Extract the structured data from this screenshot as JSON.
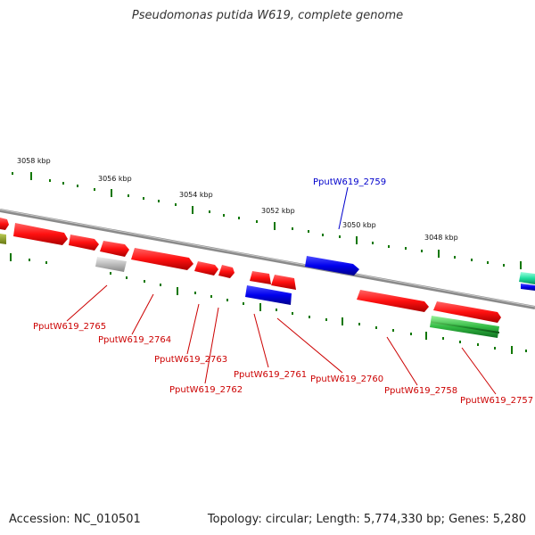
{
  "title": "Pseudomonas putida W619, complete genome",
  "footer": {
    "accession": "Accession: NC_010501",
    "summary": "Topology: circular; Length: 5,774,330 bp; Genes: 5,280"
  },
  "colors": {
    "forward_gene": "#ff1a1a",
    "reverse_gene": "#0000ee",
    "rna_gene": "#22bb44",
    "pseudo_gene": "#bbbbbb",
    "backbone": "#888888",
    "tick": "#117700"
  },
  "scale_labels": [
    "3058 kbp",
    "3056 kbp",
    "3054 kbp",
    "3052 kbp",
    "3050 kbp",
    "3048 kbp"
  ],
  "gene_labels": [
    {
      "text": "PputW619_2759",
      "color": "blue"
    },
    {
      "text": "PputW619_2765",
      "color": "red"
    },
    {
      "text": "PputW619_2764",
      "color": "red"
    },
    {
      "text": "PputW619_2763",
      "color": "red"
    },
    {
      "text": "PputW619_2762",
      "color": "red"
    },
    {
      "text": "PputW619_2761",
      "color": "red"
    },
    {
      "text": "PputW619_2760",
      "color": "red"
    },
    {
      "text": "PputW619_2758",
      "color": "red"
    },
    {
      "text": "PputW619_2757",
      "color": "red"
    }
  ]
}
